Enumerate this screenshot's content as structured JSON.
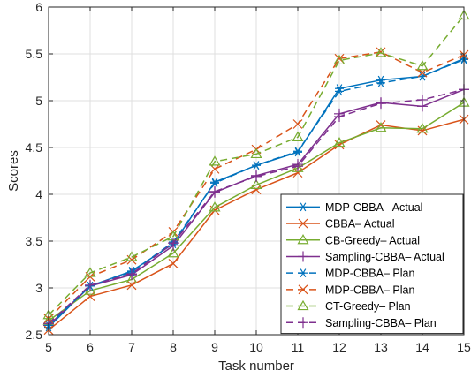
{
  "chart_data": {
    "type": "line",
    "xlabel": "Task number",
    "ylabel": "Scores",
    "xlim": [
      5,
      15
    ],
    "ylim": [
      2.5,
      6
    ],
    "xticks": [
      5,
      6,
      7,
      8,
      9,
      10,
      11,
      12,
      13,
      14,
      15
    ],
    "yticks": [
      2.5,
      3,
      3.5,
      4,
      4.5,
      5,
      5.5,
      6
    ],
    "ytick_labels": [
      "2.5",
      "3",
      "3.5",
      "4",
      "4.5",
      "5",
      "5.5",
      "6"
    ],
    "grid": true,
    "legend_position": "bottom-right",
    "x": [
      5,
      6,
      7,
      8,
      9,
      10,
      11,
      12,
      13,
      14,
      15
    ],
    "series": [
      {
        "name": "MDP-CBBA– Actual",
        "color": "#0072BD",
        "marker": "asterisk",
        "dash": "solid",
        "values": [
          2.58,
          3.02,
          3.18,
          3.47,
          4.13,
          4.31,
          4.45,
          5.13,
          5.22,
          5.26,
          5.45
        ]
      },
      {
        "name": "CBBA– Actual",
        "color": "#D95319",
        "marker": "x",
        "dash": "solid",
        "values": [
          2.55,
          2.91,
          3.03,
          3.26,
          3.83,
          4.05,
          4.23,
          4.53,
          4.74,
          4.68,
          4.8
        ]
      },
      {
        "name": "CB-Greedy– Actual",
        "color": "#77AC30",
        "marker": "triangle",
        "dash": "solid",
        "values": [
          2.65,
          2.97,
          3.09,
          3.37,
          3.86,
          4.1,
          4.28,
          4.55,
          4.71,
          4.7,
          4.98
        ]
      },
      {
        "name": "Sampling-CBBA– Actual",
        "color": "#7E2F8E",
        "marker": "plus",
        "dash": "solid",
        "values": [
          2.6,
          3.02,
          3.14,
          3.45,
          4.02,
          4.2,
          4.32,
          4.86,
          4.98,
          4.94,
          5.12
        ]
      },
      {
        "name": "MDP-CBBA– Plan",
        "color": "#0072BD",
        "marker": "asterisk",
        "dash": "dashed",
        "values": [
          2.6,
          3.02,
          3.17,
          3.49,
          4.12,
          4.31,
          4.46,
          5.1,
          5.19,
          5.26,
          5.44
        ]
      },
      {
        "name": "MDP-CBBA– Plan",
        "color": "#D95319",
        "marker": "x",
        "dash": "dashed",
        "values": [
          2.67,
          3.12,
          3.3,
          3.6,
          4.27,
          4.48,
          4.75,
          5.45,
          5.52,
          5.3,
          5.49
        ]
      },
      {
        "name": "CT-Greedy– Plan",
        "color": "#77AC30",
        "marker": "triangle",
        "dash": "dashed",
        "values": [
          2.71,
          3.16,
          3.33,
          3.55,
          4.35,
          4.43,
          4.61,
          5.43,
          5.51,
          5.37,
          5.91
        ]
      },
      {
        "name": "Sampling-CBBA– Plan",
        "color": "#7E2F8E",
        "marker": "plus",
        "dash": "dashed",
        "values": [
          2.62,
          3.03,
          3.15,
          3.48,
          4.03,
          4.19,
          4.3,
          4.83,
          4.97,
          5.01,
          5.12
        ]
      }
    ]
  }
}
